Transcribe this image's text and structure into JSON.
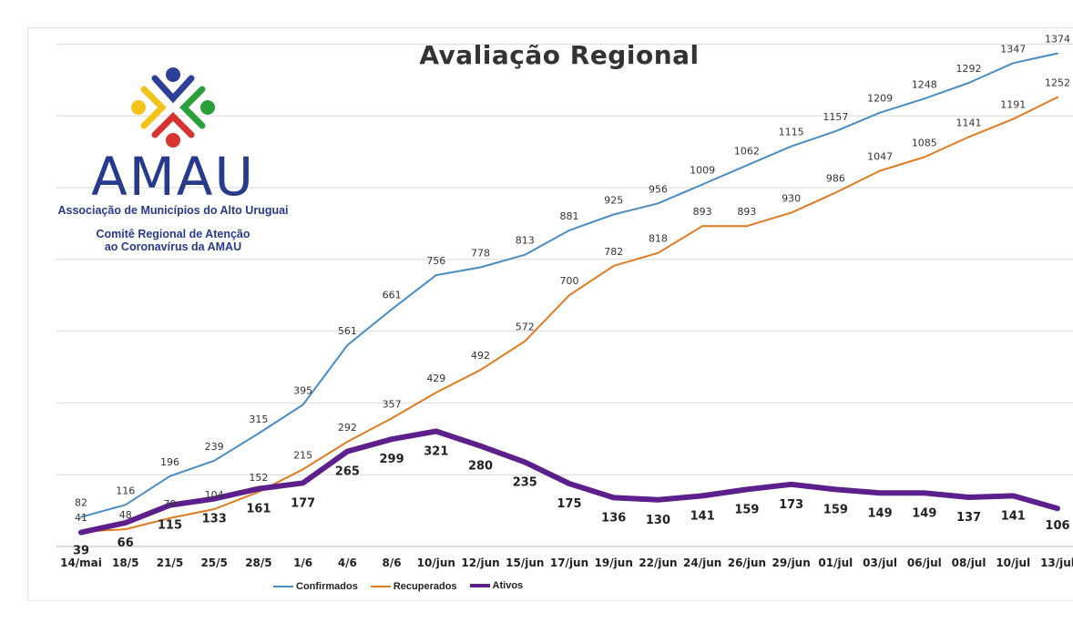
{
  "logo": {
    "name": "AMAU",
    "association": "Associação de Municípios do Alto Uruguai",
    "committee_line1": "Comitê Regional de Atenção",
    "committee_line2": "ao Coronavírus da AMAU"
  },
  "chart_data": {
    "type": "line",
    "title": "Avaliação Regional",
    "categories": [
      "14/mai",
      "18/5",
      "21/5",
      "25/5",
      "28/5",
      "1/6",
      "4/6",
      "8/6",
      "10/jun",
      "12/jun",
      "15/jun",
      "17/jun",
      "19/jun",
      "22/jun",
      "24/jun",
      "26/jun",
      "29/jun",
      "01/jul",
      "03/jul",
      "06/jul",
      "08/jul",
      "10/jul",
      "13/jul"
    ],
    "series": [
      {
        "name": "Confirmados",
        "color": "#4a8cc4",
        "values": [
          82,
          116,
          196,
          239,
          315,
          395,
          561,
          661,
          756,
          778,
          813,
          881,
          925,
          956,
          1009,
          1062,
          1115,
          1157,
          1209,
          1248,
          1292,
          1347,
          1374
        ]
      },
      {
        "name": "Recuperados",
        "color": "#e07b1f",
        "values": [
          41,
          48,
          79,
          104,
          152,
          215,
          292,
          357,
          429,
          492,
          572,
          700,
          782,
          818,
          893,
          893,
          930,
          986,
          1047,
          1085,
          1141,
          1191,
          1252
        ]
      },
      {
        "name": "Ativos",
        "color": "#5c1f8c",
        "values": [
          39,
          66,
          115,
          133,
          161,
          177,
          265,
          299,
          321,
          280,
          235,
          175,
          136,
          130,
          141,
          159,
          173,
          159,
          149,
          149,
          137,
          141,
          106
        ]
      }
    ],
    "ylim": [
      0,
      1500
    ],
    "grid": true,
    "legend_position": "bottom"
  }
}
